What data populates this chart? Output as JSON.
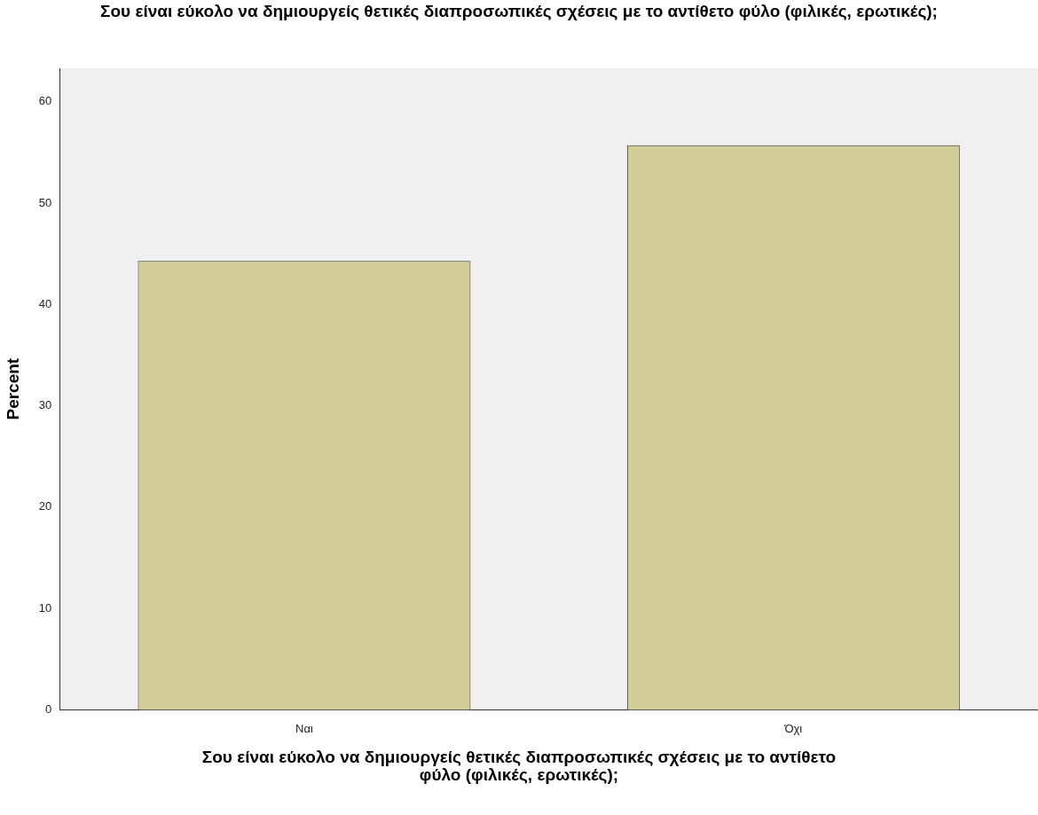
{
  "chart_data": {
    "type": "bar",
    "title": "Σου είναι εύκολο να δημιουργείς θετικές διαπροσωπικές σχέσεις με το αντίθετο φύλο (φιλικές, ερωτικές);",
    "xlabel": "Σου είναι εύκολο να δημιουργείς θετικές διαπροσωπικές σχέσεις με το αντίθετο φύλο (φιλικές, ερωτικές);",
    "ylabel": "Percent",
    "categories": [
      "Ναι",
      "Όχι"
    ],
    "values": [
      44.3,
      55.7
    ],
    "color": "#d3ce97",
    "ylim": [
      0,
      63.3
    ],
    "yticks": [
      0,
      10,
      20,
      30,
      40,
      50,
      60
    ],
    "grid": false,
    "legend": false
  }
}
